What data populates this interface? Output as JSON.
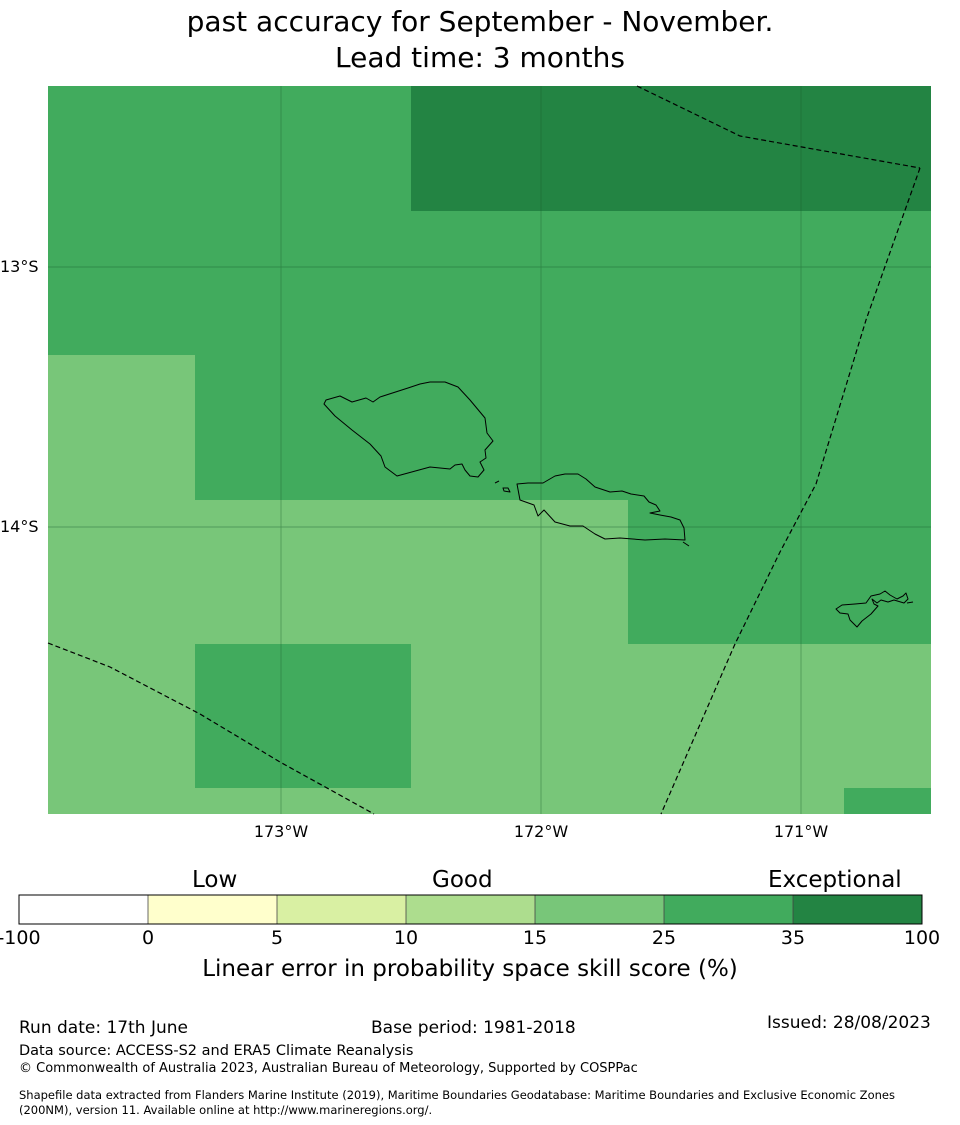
{
  "title": {
    "line1": "past accuracy for September - November.",
    "line2": "Lead time: 3 months"
  },
  "map": {
    "lat_labels": [
      "13°S",
      "14°S"
    ],
    "lon_labels": [
      "173°W",
      "172°W",
      "171°W"
    ]
  },
  "colorbar": {
    "categories": [
      "Low",
      "Good",
      "Exceptional"
    ],
    "ticks": [
      "-100",
      "0",
      "5",
      "10",
      "15",
      "25",
      "35",
      "100"
    ],
    "colors": [
      "#ffffff",
      "#ffffcc",
      "#d9f0a3",
      "#addd8e",
      "#78c679",
      "#41ab5d",
      "#238443"
    ],
    "label": "Linear error in probability space skill score (%)"
  },
  "footer": {
    "run_date": "Run date: 17th June",
    "base_period": "Base period: 1981-2018",
    "issued": "Issued: 28/08/2023",
    "data_source": "Data source: ACCESS-S2 and ERA5 Climate Reanalysis",
    "copyright": "© Commonwealth of Australia 2023, Australian Bureau of Meteorology, Supported by COSPPac",
    "shapefile_line1": "Shapefile data extracted from Flanders Marine Institute (2019), Maritime Boundaries Geodatabase: Maritime Boundaries and Exclusive Economic Zones",
    "shapefile_line2": "(200NM), version 11. Available online at http://www.marineregions.org/."
  }
}
